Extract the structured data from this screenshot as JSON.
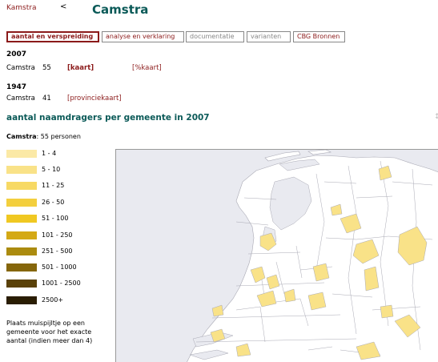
{
  "header": {
    "breadcrumb": "Kamstra",
    "back_symbol": "<",
    "title": "Camstra"
  },
  "tabs": [
    {
      "label": "aantal en verspreiding"
    },
    {
      "label": "analyse en verklaring"
    },
    {
      "label": "documentatie"
    },
    {
      "label": "varianten"
    },
    {
      "label": "CBG Bronnen"
    }
  ],
  "census": [
    {
      "year": "2007",
      "name": "Camstra",
      "count": "55",
      "link1": "[kaart]",
      "link2": "[%kaart]"
    },
    {
      "year": "1947",
      "name": "Camstra",
      "count": "41",
      "link1": "[provinciekaart]"
    }
  ],
  "map_section": {
    "title": "aantal naamdragers per gemeente in 2007",
    "scroll_hint": "↕"
  },
  "legend": {
    "name": "Camstra",
    "summary": ": 55 personen",
    "items": [
      {
        "label": "1 - 4",
        "color": "#fbe9a6"
      },
      {
        "label": "5 - 10",
        "color": "#f9e288"
      },
      {
        "label": "11 - 25",
        "color": "#f7d964"
      },
      {
        "label": "26 - 50",
        "color": "#f3cf3e"
      },
      {
        "label": "51 - 100",
        "color": "#f0c822"
      },
      {
        "label": "101 - 250",
        "color": "#d4a915"
      },
      {
        "label": "251 - 500",
        "color": "#ab8b0f"
      },
      {
        "label": "501 - 1000",
        "color": "#85660b"
      },
      {
        "label": "1001 - 2500",
        "color": "#5a4108"
      },
      {
        "label": "2500+",
        "color": "#2a1d03"
      }
    ],
    "hint": "Plaats muispijltje op een gemeente voor het exacte aantal (indien meer dan 4)"
  },
  "map": {
    "sea_color": "#e9eaf0",
    "land_color": "#ffffff",
    "border_color": "#a9a9b4",
    "filled_color": "#f9e288"
  }
}
